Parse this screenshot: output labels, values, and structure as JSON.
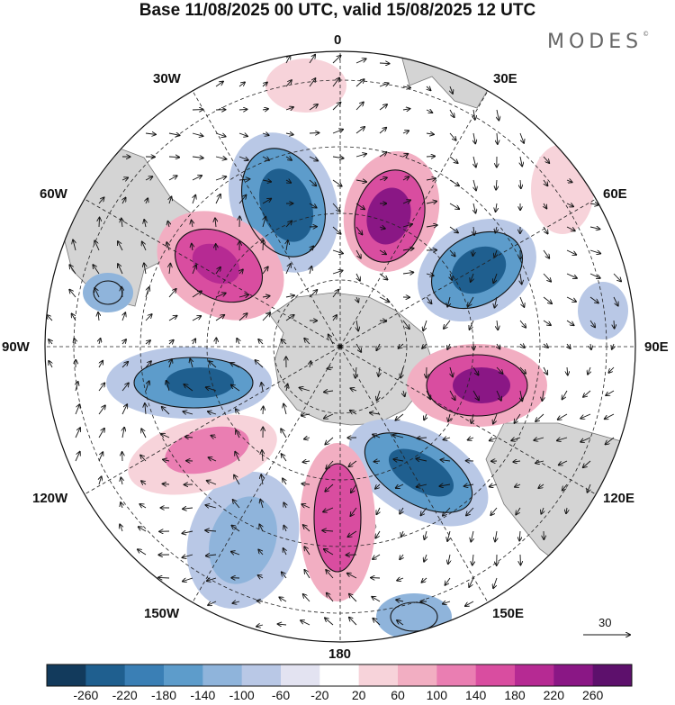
{
  "title": "Base 11/08/2025 00 UTC, valid 15/08/2025 12 UTC",
  "brand": "MODES",
  "brand_mark": "©",
  "longitude_labels": {
    "lon_0": "0",
    "lon_30e": "30E",
    "lon_60e": "60E",
    "lon_90e": "90E",
    "lon_120e": "120E",
    "lon_150e": "150E",
    "lon_180": "180",
    "lon_150w": "150W",
    "lon_120w": "120W",
    "lon_90w": "90W",
    "lon_60w": "60W",
    "lon_30w": "30W"
  },
  "vector_reference": {
    "value": "30"
  },
  "colorbar": {
    "levels": [
      "-260",
      "-220",
      "-180",
      "-140",
      "-100",
      "-60",
      "-20",
      "20",
      "60",
      "100",
      "140",
      "180",
      "220",
      "260"
    ],
    "colors": [
      "#123a5c",
      "#1f5f8f",
      "#3a7fb5",
      "#5d9ccb",
      "#8fb4db",
      "#b9c8e6",
      "#e3e3f1",
      "#ffffff",
      "#f7d3da",
      "#f2aec2",
      "#ea7eb2",
      "#d94da0",
      "#b62a93",
      "#8a1785",
      "#5d106c"
    ]
  },
  "colors": {
    "land": "#d4d4d4",
    "coast": "#777777",
    "grid": "#222222"
  }
}
